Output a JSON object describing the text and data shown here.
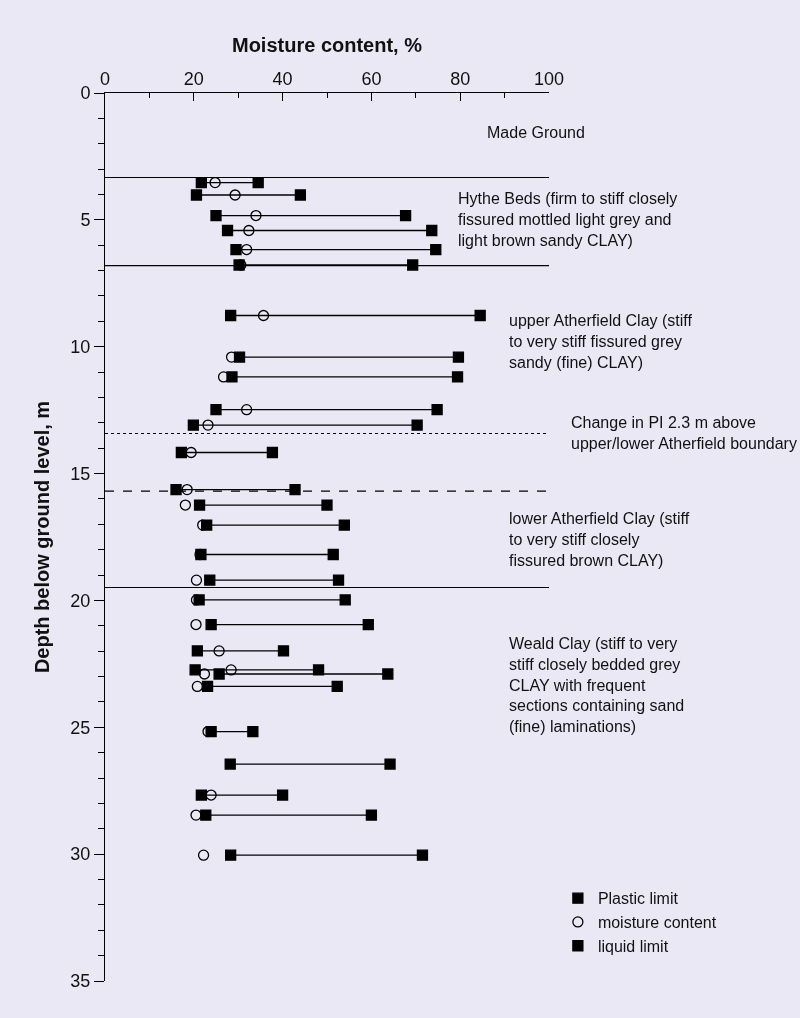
{
  "chart_data": {
    "type": "scatter",
    "xlabel": "Moisture content, %",
    "ylabel": "Depth below ground level, m",
    "xlim": [
      0,
      100
    ],
    "xticks": [
      0,
      20,
      40,
      60,
      80,
      100
    ],
    "ylim": [
      35,
      0
    ],
    "yticks": [
      0,
      5,
      10,
      15,
      20,
      25,
      30,
      35
    ],
    "grid": false,
    "legend": "bottom right",
    "series": [
      {
        "type": "line",
        "color": "#000000",
        "marker": "none",
        "x": [
          21.7,
          34.5,
          null,
          20.6,
          44.0,
          null,
          25.0,
          67.7,
          null,
          27.6,
          73.6,
          null,
          29.5,
          74.5,
          null,
          30.2,
          69.3,
          null,
          28.3,
          84.5,
          null,
          30.3,
          79.6,
          null,
          28.6,
          79.4,
          null,
          25.0,
          74.8,
          null,
          19.9,
          70.3,
          null,
          17.2,
          37.7,
          null,
          16.0,
          42.8,
          null,
          21.3,
          50.0,
          null,
          22.9,
          53.9,
          null,
          21.6,
          51.4,
          null,
          23.6,
          52.6,
          null,
          21.2,
          54.1,
          null,
          23.9,
          59.3,
          null,
          20.8,
          40.2,
          null,
          20.3,
          48.1,
          null,
          25.7,
          63.7,
          null,
          23.1,
          52.3,
          null,
          23.9,
          33.3,
          null,
          28.2,
          64.2,
          null,
          21.7,
          40.0,
          null,
          22.7,
          60.0,
          null,
          28.3,
          71.5
        ],
        "values": [
          3.53,
          3.53,
          null,
          4.02,
          4.02,
          null,
          4.83,
          4.83,
          null,
          5.42,
          5.42,
          null,
          6.17,
          6.17,
          null,
          6.78,
          6.78,
          null,
          8.77,
          8.77,
          null,
          10.41,
          10.41,
          null,
          11.19,
          11.19,
          null,
          12.48,
          12.48,
          null,
          13.09,
          13.09,
          null,
          14.17,
          14.17,
          null,
          15.63,
          15.63,
          null,
          16.24,
          16.24,
          null,
          17.03,
          17.03,
          null,
          18.19,
          18.19,
          null,
          19.2,
          19.2,
          null,
          19.98,
          19.98,
          null,
          20.95,
          20.95,
          null,
          21.99,
          21.99,
          null,
          22.74,
          22.74,
          null,
          22.9,
          22.9,
          null,
          23.39,
          23.39,
          null,
          25.17,
          25.17,
          null,
          26.45,
          26.45,
          null,
          27.67,
          27.67,
          null,
          28.46,
          28.46,
          null,
          30.04,
          30.04
        ]
      },
      {
        "name": "Plastic limit",
        "color": "#000000",
        "marker": "square",
        "x": [
          21.7,
          20.6,
          25.0,
          27.6,
          29.5,
          30.2,
          28.3,
          30.3,
          28.6,
          25.0,
          19.9,
          17.2,
          16.0,
          21.3,
          22.9,
          21.6,
          23.6,
          21.2,
          23.9,
          20.8,
          20.3,
          25.7,
          23.1,
          23.9,
          28.2,
          21.7,
          22.7,
          28.3
        ],
        "values": [
          3.53,
          4.02,
          4.83,
          5.42,
          6.17,
          6.78,
          8.77,
          10.41,
          11.19,
          12.48,
          13.09,
          14.17,
          15.63,
          16.24,
          17.03,
          18.19,
          19.2,
          19.98,
          20.95,
          21.99,
          22.74,
          22.9,
          23.39,
          25.17,
          26.45,
          27.67,
          28.46,
          30.04
        ]
      },
      {
        "name": "moisture content",
        "color": "#000000",
        "marker": "circle",
        "x": [
          24.8,
          29.3,
          34.0,
          32.4,
          31.9,
          30.6,
          35.7,
          28.5,
          26.7,
          31.9,
          23.2,
          19.4,
          18.5,
          18.1,
          22.0,
          21.4,
          20.6,
          20.6,
          20.5,
          25.7,
          28.4,
          22.4,
          20.8,
          23.2,
          null,
          23.9,
          20.5,
          22.2
        ],
        "values": [
          3.53,
          4.02,
          4.83,
          5.42,
          6.17,
          6.78,
          8.77,
          10.41,
          11.19,
          12.48,
          13.09,
          14.17,
          15.63,
          16.24,
          17.03,
          18.19,
          19.2,
          19.98,
          20.95,
          21.99,
          22.74,
          22.9,
          23.39,
          25.17,
          null,
          27.67,
          28.46,
          30.04
        ]
      },
      {
        "name": "liquid limit",
        "color": "#000000",
        "marker": "square",
        "x": [
          34.5,
          44.0,
          67.7,
          73.6,
          74.5,
          69.3,
          84.5,
          79.6,
          79.4,
          74.8,
          70.3,
          37.7,
          42.8,
          50.0,
          53.9,
          51.4,
          52.6,
          54.1,
          59.3,
          40.2,
          48.1,
          63.7,
          52.3,
          33.3,
          64.2,
          40.0,
          60.0,
          71.5
        ],
        "values": [
          3.53,
          4.02,
          4.83,
          5.42,
          6.17,
          6.78,
          8.77,
          10.41,
          11.19,
          12.48,
          13.09,
          14.17,
          15.63,
          16.24,
          17.03,
          18.19,
          19.2,
          19.98,
          20.95,
          21.99,
          22.74,
          22.9,
          23.39,
          25.17,
          26.45,
          27.67,
          28.46,
          30.04
        ]
      }
    ],
    "ref_lines": [
      {
        "axis": "y",
        "value": 3.33,
        "label": null,
        "color": "#000000",
        "line_style": "solid"
      },
      {
        "axis": "y",
        "value": 6.8,
        "label": null,
        "color": "#000000",
        "line_style": "solid"
      },
      {
        "axis": "y",
        "value": 13.42,
        "label": "Change in PI 2.3 m above\nupper/lower Atherfield boundary",
        "color": "#000000",
        "line_style": "dotted"
      },
      {
        "axis": "y",
        "value": 15.69,
        "label": null,
        "color": "#000000",
        "line_style": "dashed"
      },
      {
        "axis": "y",
        "value": 19.49,
        "label": null,
        "color": "#000000",
        "line_style": "solid"
      }
    ],
    "annotations": [
      "Made Ground",
      "Hythe Beds (firm to stiff closely\nfissured mottled light grey and\nlight brown sandy CLAY)",
      "upper Atherfield Clay (stiff\nto very stiff fissured grey\nsandy (fine) CLAY)",
      "lower Atherfield Clay (stiff\nto very stiff closely\nfissured brown CLAY)",
      "Weald Clay (stiff to very\nstiff closely bedded grey\nCLAY with frequent\nsections containing sand\n(fine) laminations)"
    ]
  }
}
